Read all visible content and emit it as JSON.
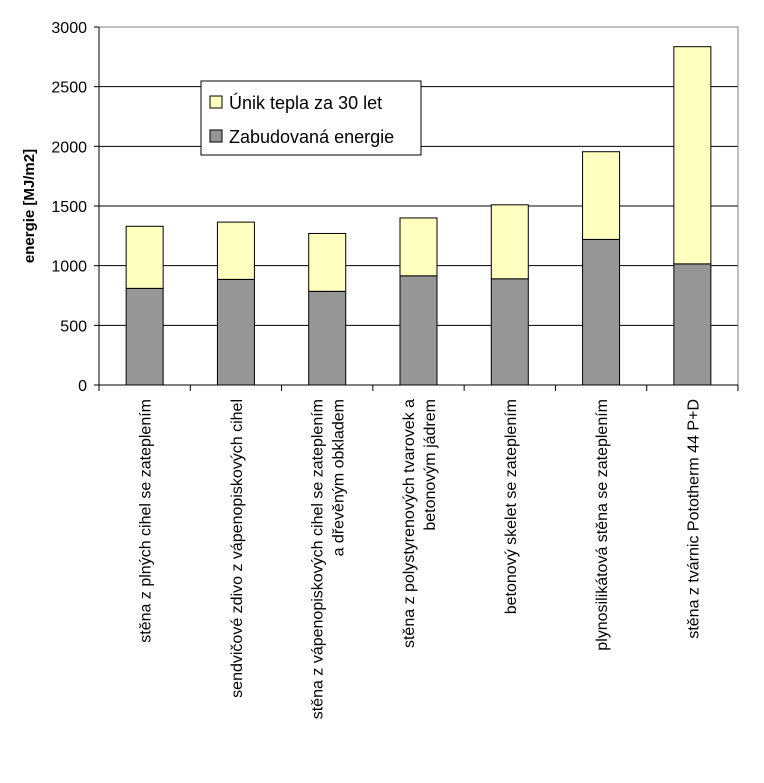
{
  "chart_data": {
    "type": "bar",
    "stacked": true,
    "title": "",
    "xlabel": "",
    "ylabel": "energie [MJ/m2]",
    "ylim": [
      0,
      3000
    ],
    "yticks": [
      0,
      500,
      1000,
      1500,
      2000,
      2500,
      3000
    ],
    "grid": true,
    "legend_position": "top-left",
    "categories": [
      [
        "stěna z plných cihel se zateplením"
      ],
      [
        "sendvičové zdivo z vápenopiskových cihel"
      ],
      [
        "stěna z vápenopiskových cihel se zateplením",
        "a dřevěným obkladem"
      ],
      [
        "stěna z polystyrenových tvarovek a",
        "betonovým jádrem"
      ],
      [
        "betonový skelet se zateplením"
      ],
      [
        "plynosilikátová stěna se zateplením"
      ],
      [
        "stěna z tvárnic  Pototherm 44 P+D"
      ]
    ],
    "series": [
      {
        "name": "Zabudovaná energie",
        "color": "#969696",
        "values": [
          810,
          885,
          785,
          915,
          890,
          1220,
          1015
        ]
      },
      {
        "name": "Únik tepla za 30 let",
        "color": "#FFFFC0",
        "values": [
          520,
          480,
          485,
          485,
          620,
          735,
          1820
        ]
      }
    ],
    "legend_order": [
      "Únik tepla za 30 let",
      "Zabudovaná energie"
    ]
  }
}
